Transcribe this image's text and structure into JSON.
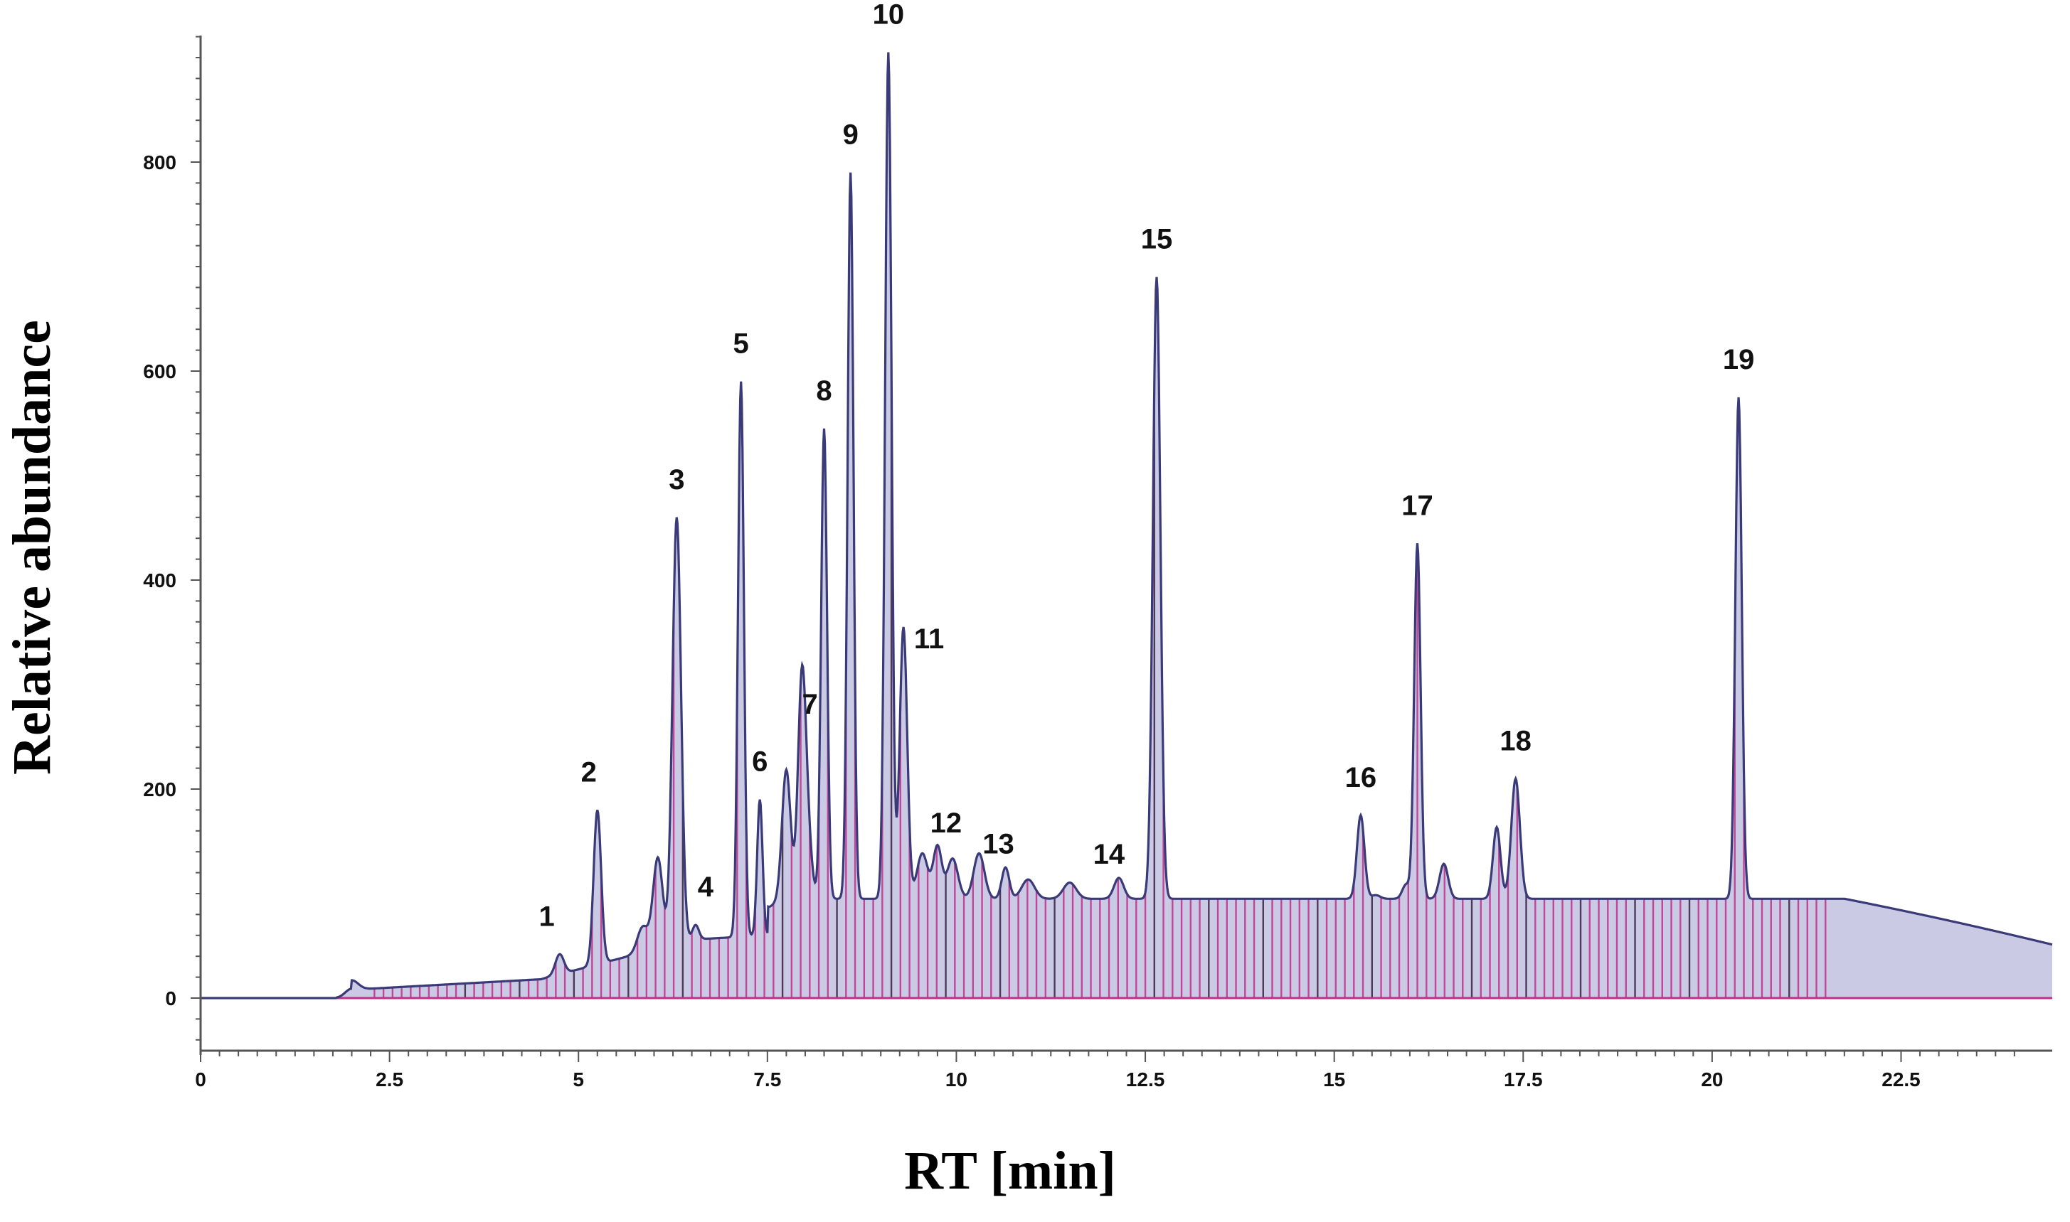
{
  "chart_data": {
    "type": "line",
    "title": "",
    "xlabel": "RT [min]",
    "ylabel": "Relative abundance",
    "xlim": [
      0,
      24.5
    ],
    "ylim": [
      -50,
      930
    ],
    "xticks": [
      0,
      2.5,
      5,
      7.5,
      10,
      12.5,
      15,
      17.5,
      20,
      22.5
    ],
    "xtick_labels": [
      "0",
      "2.5",
      "5",
      "7.5",
      "10",
      "12.5",
      "15",
      "17.5",
      "20",
      "22.5"
    ],
    "yticks": [
      0,
      200,
      400,
      600,
      800
    ],
    "ytick_labels": [
      "0",
      "200",
      "400",
      "600",
      "800"
    ],
    "grid": false,
    "colors": {
      "trace": "#3a3a78",
      "fill": "#b8b8dc",
      "marker_lines": "#c0308a",
      "dark_lines": "#3a2040"
    },
    "peaks": [
      {
        "label": "1",
        "rt": 4.75,
        "abundance": 42
      },
      {
        "label": "2",
        "rt": 5.25,
        "abundance": 180
      },
      {
        "label": "3",
        "rt": 6.3,
        "abundance": 460
      },
      {
        "label": "4",
        "rt": 6.55,
        "abundance": 70
      },
      {
        "label": "5",
        "rt": 7.15,
        "abundance": 590
      },
      {
        "label": "6",
        "rt": 7.4,
        "abundance": 190
      },
      {
        "label": "7",
        "rt": 7.95,
        "abundance": 245
      },
      {
        "label": "8",
        "rt": 8.25,
        "abundance": 545
      },
      {
        "label": "9",
        "rt": 8.6,
        "abundance": 790
      },
      {
        "label": "10",
        "rt": 9.1,
        "abundance": 905
      },
      {
        "label": "11",
        "rt": 9.3,
        "abundance": 355
      },
      {
        "label": "12",
        "rt": 9.75,
        "abundance": 145
      },
      {
        "label": "13",
        "rt": 10.65,
        "abundance": 125
      },
      {
        "label": "14",
        "rt": 12.15,
        "abundance": 115
      },
      {
        "label": "15",
        "rt": 12.65,
        "abundance": 690
      },
      {
        "label": "16",
        "rt": 15.35,
        "abundance": 175
      },
      {
        "label": "17",
        "rt": 16.1,
        "abundance": 435
      },
      {
        "label": "18",
        "rt": 17.4,
        "abundance": 210
      },
      {
        "label": "19",
        "rt": 20.35,
        "abundance": 575
      }
    ]
  }
}
